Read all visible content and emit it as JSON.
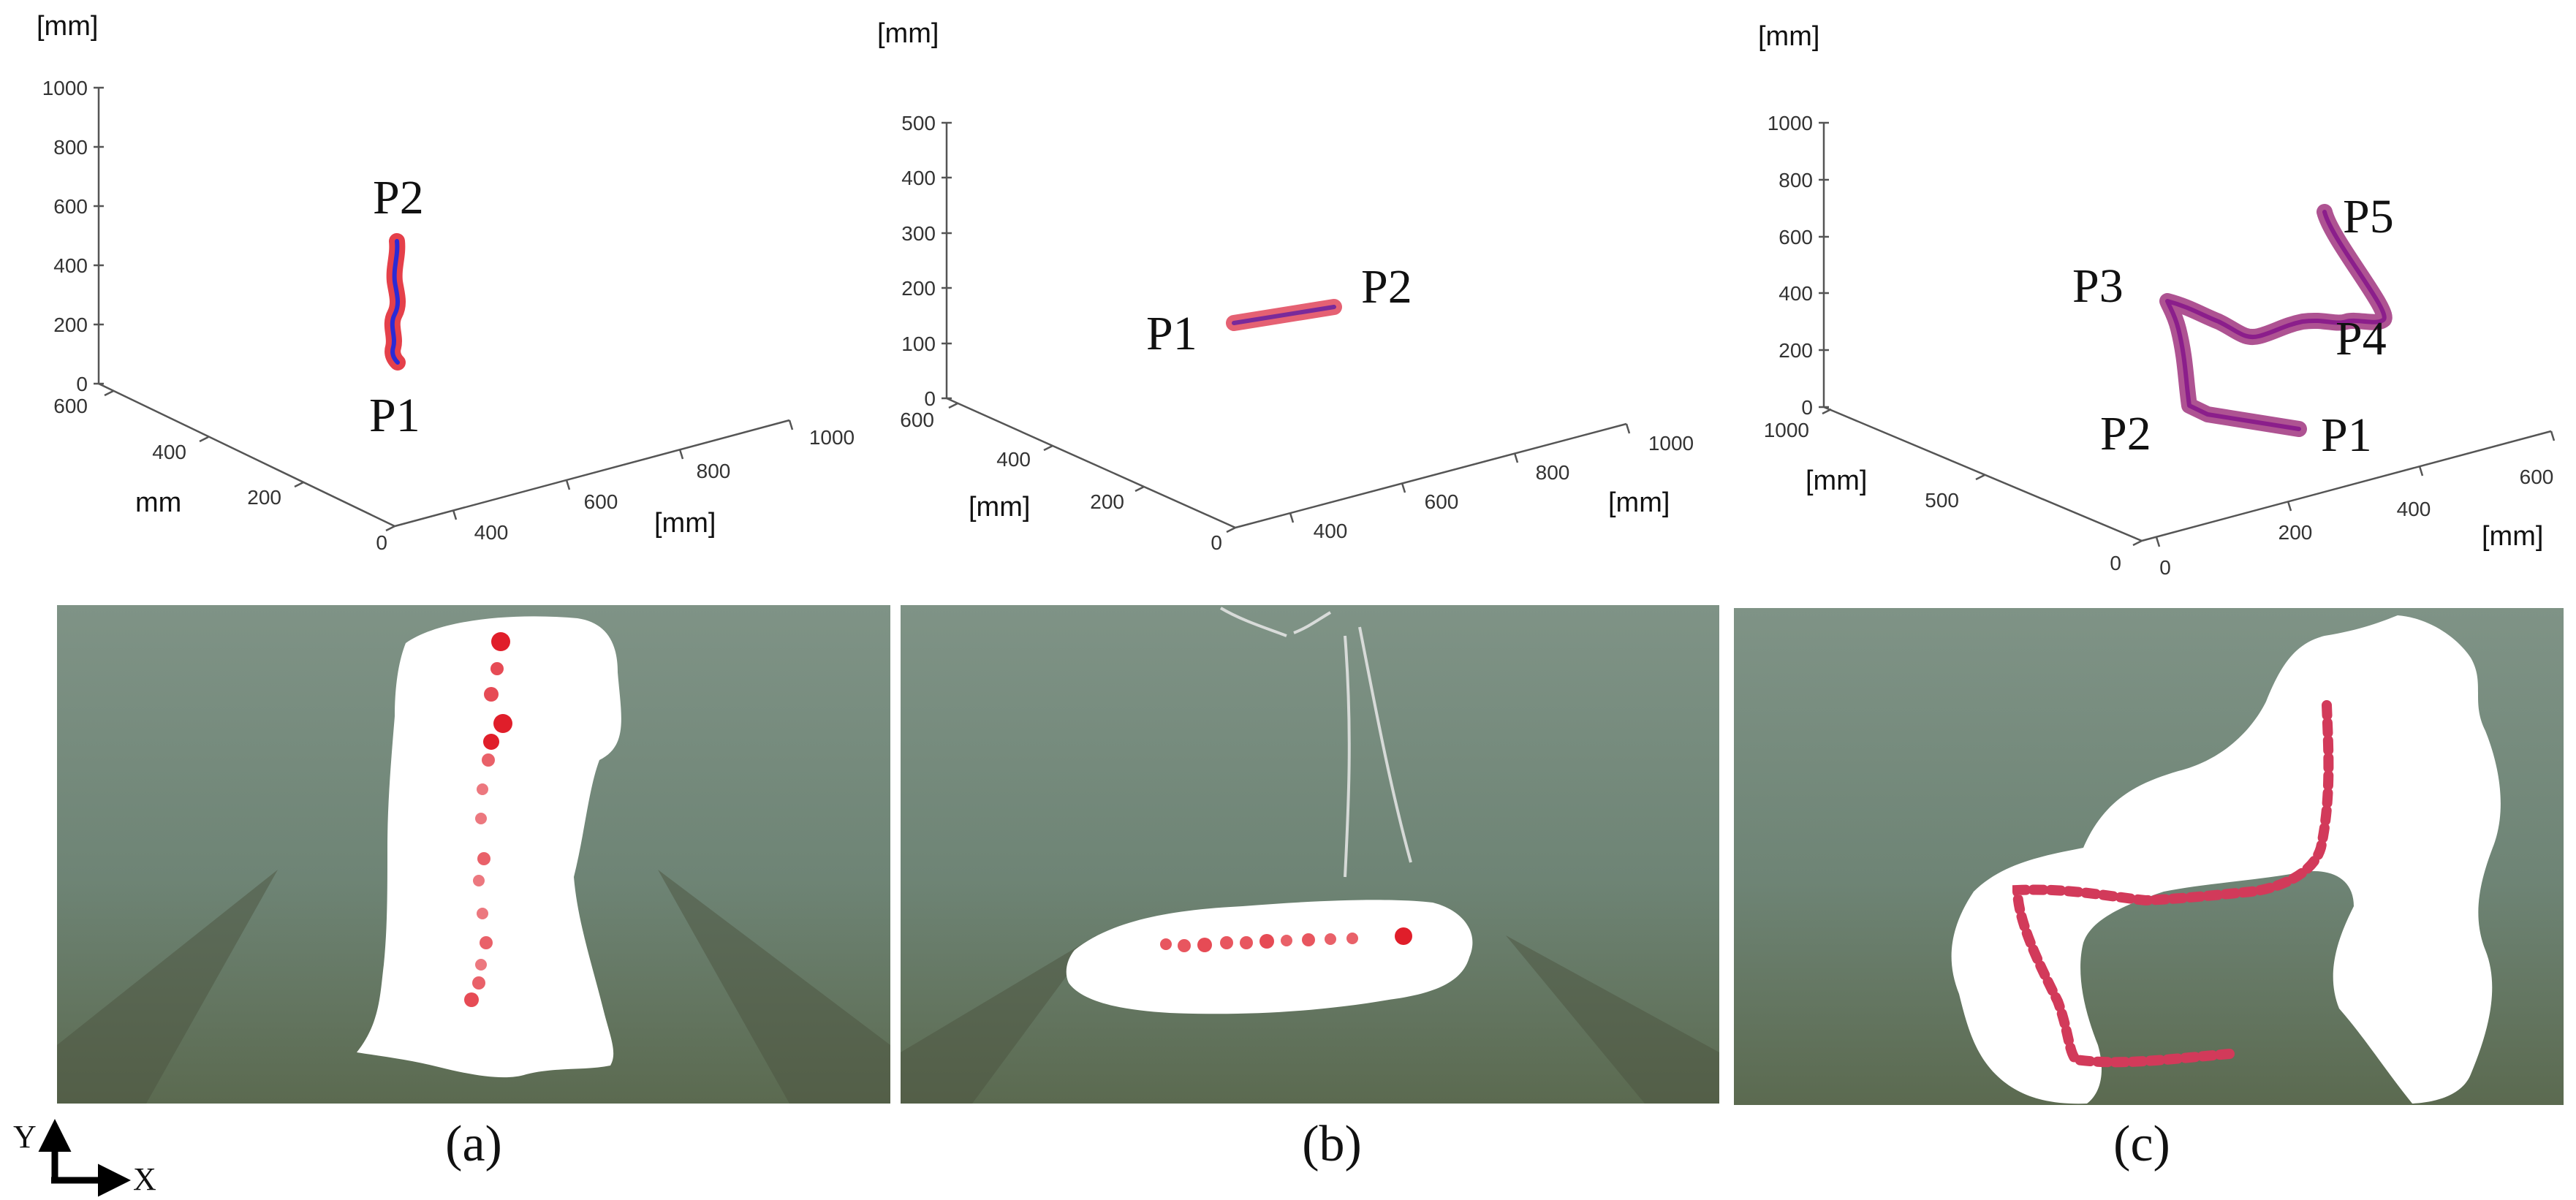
{
  "chart_data": [
    {
      "type": "line3d",
      "panel": "(a)",
      "axes": {
        "z": {
          "label": "[mm]",
          "ticks": [
            "0",
            "200",
            "400",
            "600",
            "800",
            "1000"
          ]
        },
        "x": {
          "label": "[mm]",
          "ticks": [
            "400",
            "600",
            "800",
            "1000"
          ]
        },
        "y": {
          "label": "mm",
          "ticks": [
            "0",
            "200",
            "400",
            "600"
          ]
        }
      },
      "point_labels": [
        "P2",
        "P1"
      ],
      "path_color": "#2a2ad6",
      "marker_color": "#e01e2a"
    },
    {
      "type": "line3d",
      "panel": "(b)",
      "axes": {
        "z": {
          "label": "[mm]",
          "ticks": [
            "0",
            "100",
            "200",
            "300",
            "400",
            "500"
          ]
        },
        "x": {
          "label": "[mm]",
          "ticks": [
            "400",
            "600",
            "800",
            "1000"
          ]
        },
        "y": {
          "label": "[mm]",
          "ticks": [
            "0",
            "200",
            "400",
            "600"
          ]
        }
      },
      "point_labels": [
        "P1",
        "P2"
      ],
      "path_color": "#7a2a9a",
      "marker_color": "#e01e2a"
    },
    {
      "type": "line3d",
      "panel": "(c)",
      "axes": {
        "z": {
          "label": "[mm]",
          "ticks": [
            "0",
            "200",
            "400",
            "600",
            "800",
            "1000"
          ]
        },
        "x": {
          "label": "[mm]",
          "ticks": [
            "0",
            "200",
            "400",
            "600"
          ]
        },
        "y": {
          "label": "[mm]",
          "ticks": [
            "0",
            "500",
            "1000"
          ]
        }
      },
      "point_labels": [
        "P5",
        "P3",
        "P4",
        "P2",
        "P1"
      ],
      "path_color": "#8b1e8b",
      "marker_color": "#c2185b"
    }
  ],
  "photos": {
    "tank_color": "#6f8577",
    "floor_color": "#5f6a52",
    "mask_color": "#ffffff",
    "marker_color": "#e01e2a"
  },
  "coord_axes": {
    "y": "Y",
    "x": "X"
  }
}
